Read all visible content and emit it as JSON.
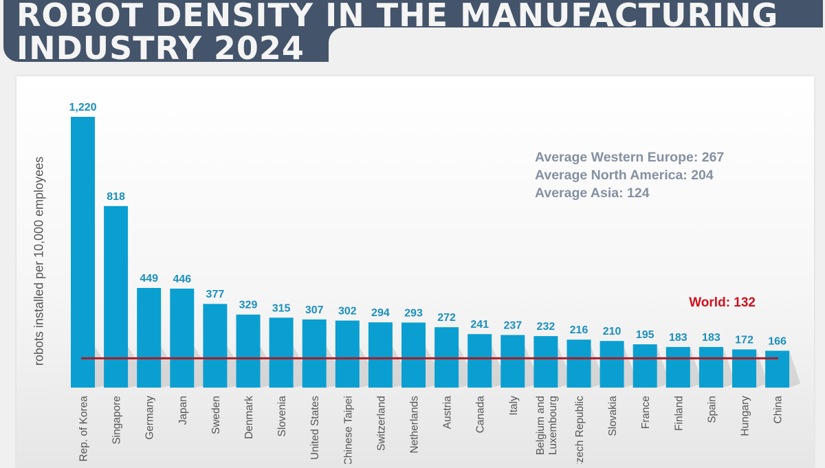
{
  "header": {
    "title_line1": "ROBOT DENSITY IN THE MANUFACTURING",
    "title_line2": "INDUSTRY 2024"
  },
  "averages": [
    "Average Western Europe: 267",
    "Average North America: 204",
    "Average Asia: 124"
  ],
  "colors": {
    "bar": "#0a9fd0",
    "bar_label": "#1a8fbd",
    "world_line": "#b01a24",
    "world_label": "#d0101c",
    "banner": "#44546a"
  },
  "chart_data": {
    "type": "bar",
    "title": "Robot density in the manufacturing industry 2024",
    "xlabel": "",
    "ylabel": "robots installed per 10,000 employees",
    "ylim": [
      0,
      1220
    ],
    "grid": false,
    "categories": [
      "Rep. of Korea",
      "Singapore",
      "Germany",
      "Japan",
      "Sweden",
      "Denmark",
      "Slovenia",
      "United States",
      "Chinese Taipei",
      "Switzerland",
      "Netherlands",
      "Austria",
      "Canada",
      "Italy",
      "Belgium and Luxembourg",
      "Czech Republic",
      "Slovakia",
      "France",
      "Finland",
      "Spain",
      "Hungary",
      "China"
    ],
    "values": [
      1220,
      818,
      449,
      446,
      377,
      329,
      315,
      307,
      302,
      294,
      293,
      272,
      241,
      237,
      232,
      216,
      210,
      195,
      183,
      183,
      172,
      166
    ],
    "value_labels": [
      "1,220",
      "818",
      "449",
      "446",
      "377",
      "329",
      "315",
      "307",
      "302",
      "294",
      "293",
      "272",
      "241",
      "237",
      "232",
      "216",
      "210",
      "195",
      "183",
      "183",
      "172",
      "166"
    ],
    "reference_line": {
      "name": "World",
      "value": 132,
      "label": "World: 132"
    }
  }
}
